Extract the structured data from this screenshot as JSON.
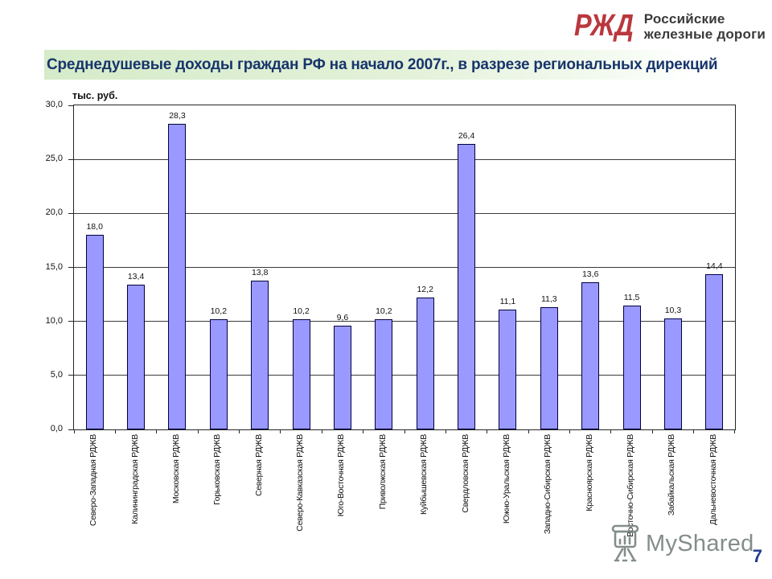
{
  "logo": {
    "mark": "РЖД",
    "company_line1": "Российские",
    "company_line2": "железные дороги"
  },
  "slide": {
    "title": "Среднедушевые доходы граждан РФ на начало 2007г., в разрезе региональных дирекций",
    "page_number": "7"
  },
  "watermark": {
    "text": "MyShared",
    "icon": "presentation-screen-mascot-icon"
  },
  "colors": {
    "brand_red": "#b9383e",
    "title_text": "#17356b",
    "title_band_green": "#d6ebc9",
    "page_number_blue": "#233b8a",
    "watermark_gray": "#76827f"
  },
  "chart_data": {
    "type": "bar",
    "title": "Среднедушевые доходы граждан РФ на начало 2007г., в разрезе региональных дирекций",
    "ylabel": "тыс. руб.",
    "xlabel": "",
    "categories": [
      "Северо-Западная РДЖВ",
      "Калининградская РДЖВ",
      "Московская РДЖВ",
      "Горьковская РДЖВ",
      "Северная РДЖВ",
      "Северо-Кавказская РДЖВ",
      "Юго-Восточная РДЖВ",
      "Приволжская РДЖВ",
      "Куйбышевская РДЖВ",
      "Свердловская РДЖВ",
      "Южно-Уральская РДЖВ",
      "Западно-Сибирская РДЖВ",
      "Красноярская РДЖВ",
      "Восточно-Сибирская РДЖВ",
      "Забайкальская РДЖВ",
      "Дальневосточная РДЖВ"
    ],
    "values": [
      18.0,
      13.4,
      28.3,
      10.2,
      13.8,
      10.2,
      9.6,
      10.2,
      12.2,
      26.4,
      11.1,
      11.3,
      13.6,
      11.5,
      10.3,
      14.4
    ],
    "value_labels": [
      "18,0",
      "13,4",
      "28,3",
      "10,2",
      "13,8",
      "10,2",
      "9,6",
      "10,2",
      "12,2",
      "26,4",
      "11,1",
      "11,3",
      "13,6",
      "11,5",
      "10,3",
      "14,4"
    ],
    "ylim": [
      0,
      30
    ],
    "ytick_step": 5,
    "ytick_labels": [
      "0,0",
      "5,0",
      "10,0",
      "15,0",
      "20,0",
      "25,0",
      "30,0"
    ],
    "grid": true,
    "legend": "none",
    "bar_color": "#9999ff",
    "bar_border_color": "#000040"
  }
}
